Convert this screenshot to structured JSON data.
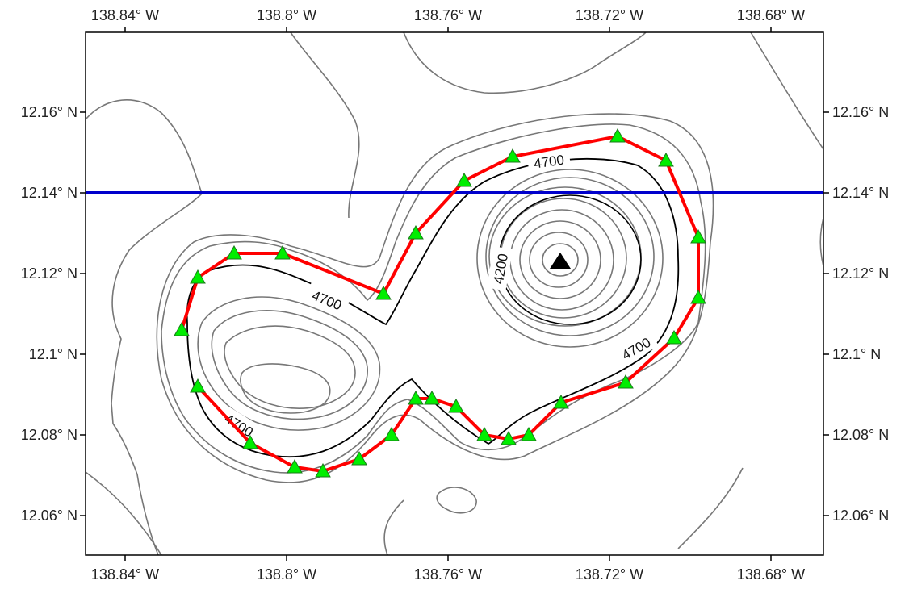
{
  "map": {
    "longitude_ticks": [
      "138.84° W",
      "138.8° W",
      "138.76° W",
      "138.72° W",
      "138.68° W"
    ],
    "latitude_ticks": [
      "12.16° N",
      "12.14° N",
      "12.12° N",
      "12.1° N",
      "12.08° N",
      "12.06° N"
    ],
    "contour_labels": [
      "4700",
      "4200",
      "4700",
      "4700",
      "4700"
    ],
    "colors": {
      "track_line": "#ff0000",
      "station_marker": "#00ee00",
      "transect_line": "#0000cc",
      "summit_marker": "#000000",
      "contour_major": "#000000",
      "contour_minor": "#777777"
    },
    "transect_latitude": "12.14° N",
    "summit": {
      "lon": "138.726° W",
      "lat": "12.123° N"
    },
    "stations": [
      {
        "lon": -138.826,
        "lat": 12.106
      },
      {
        "lon": -138.822,
        "lat": 12.119
      },
      {
        "lon": -138.813,
        "lat": 12.125
      },
      {
        "lon": -138.801,
        "lat": 12.125
      },
      {
        "lon": -138.776,
        "lat": 12.115
      },
      {
        "lon": -138.768,
        "lat": 12.13
      },
      {
        "lon": -138.756,
        "lat": 12.143
      },
      {
        "lon": -138.744,
        "lat": 12.149
      },
      {
        "lon": -138.718,
        "lat": 12.154
      },
      {
        "lon": -138.706,
        "lat": 12.148
      },
      {
        "lon": -138.698,
        "lat": 12.129
      },
      {
        "lon": -138.698,
        "lat": 12.114
      },
      {
        "lon": -138.704,
        "lat": 12.104
      },
      {
        "lon": -138.716,
        "lat": 12.093
      },
      {
        "lon": -138.732,
        "lat": 12.088
      },
      {
        "lon": -138.74,
        "lat": 12.08
      },
      {
        "lon": -138.745,
        "lat": 12.079
      },
      {
        "lon": -138.751,
        "lat": 12.08
      },
      {
        "lon": -138.758,
        "lat": 12.087
      },
      {
        "lon": -138.764,
        "lat": 12.089
      },
      {
        "lon": -138.768,
        "lat": 12.089
      },
      {
        "lon": -138.774,
        "lat": 12.08
      },
      {
        "lon": -138.782,
        "lat": 12.074
      },
      {
        "lon": -138.791,
        "lat": 12.071
      },
      {
        "lon": -138.798,
        "lat": 12.072
      },
      {
        "lon": -138.809,
        "lat": 12.078
      },
      {
        "lon": -138.822,
        "lat": 12.092
      }
    ]
  }
}
